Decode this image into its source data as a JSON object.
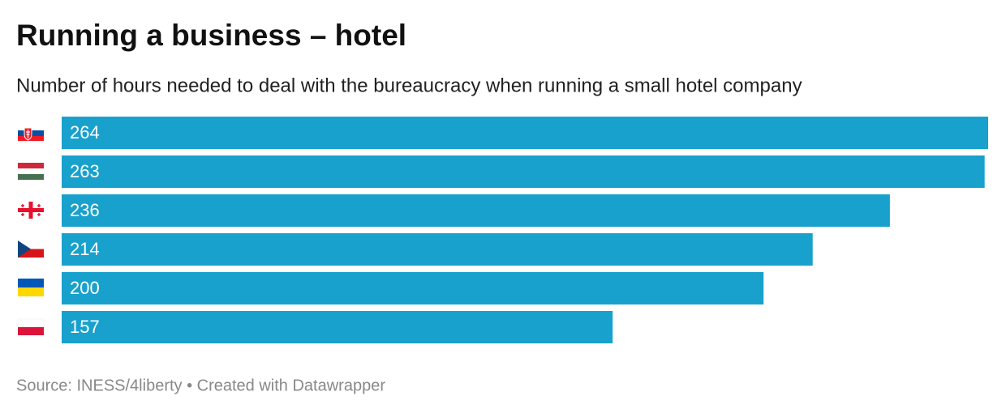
{
  "chart_data": {
    "type": "bar",
    "orientation": "horizontal",
    "title": "Running a business – hotel",
    "subtitle": "Number of hours needed to deal with the bureaucracy when running a small hotel company",
    "categories": [
      null,
      null,
      null,
      null,
      null,
      null
    ],
    "values": [
      264,
      263,
      236,
      214,
      200,
      157
    ],
    "color": "#18a1cd",
    "source": "Source: INESS/4liberty • Created with Datawrapper"
  }
}
